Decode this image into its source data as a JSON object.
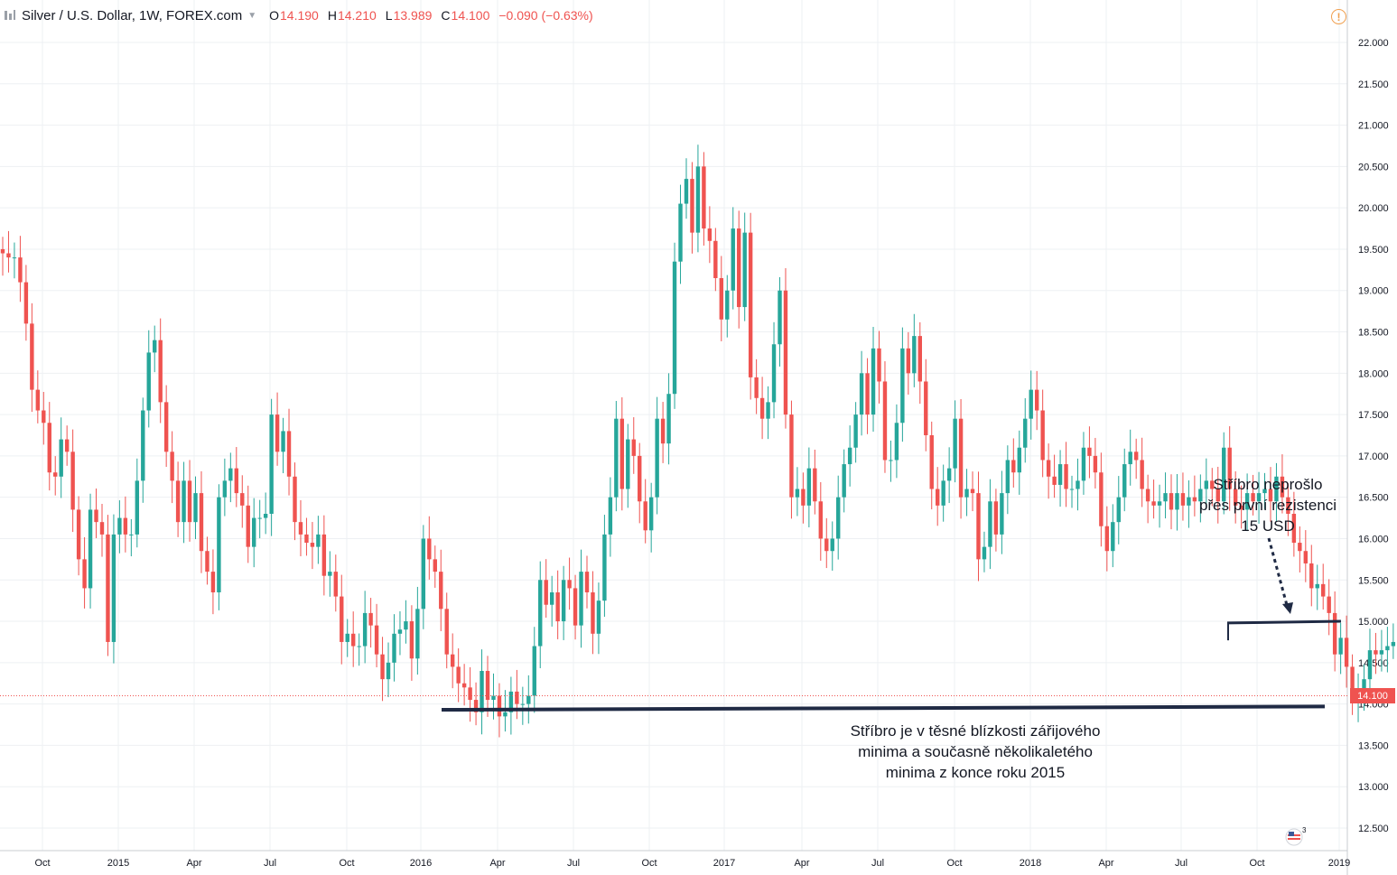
{
  "header": {
    "symbol": "Silver / U.S. Dollar, 1W, FOREX.com",
    "open_label": "O",
    "open_value": "14.190",
    "high_label": "H",
    "high_value": "14.210",
    "low_label": "L",
    "low_value": "13.989",
    "close_label": "C",
    "close_value": "14.100",
    "change": "−0.090 (−0.63%)"
  },
  "icons": {
    "symbol": "chart-bars-icon",
    "dropdown": "chevron-down-icon",
    "alert": "warning-icon",
    "flag": "us-flag-icon"
  },
  "warning_glyph": "!",
  "flag_badge": "3",
  "price_tag": "14.100",
  "annotations": {
    "resistance": [
      "Stříbro neprošlo",
      "přes první rezistenci",
      "15 USD"
    ],
    "support": [
      "Stříbro je v těsné blízkosti zářijového",
      "minima a současně několikaletého",
      "minima z konce roku 2015"
    ]
  },
  "colors": {
    "up": "#26a69a",
    "down": "#ef5350",
    "grid": "#eef0f3",
    "line": "#1f2a44",
    "axis_text": "#131722"
  },
  "chart_data": {
    "type": "candlestick",
    "title": "Silver / U.S. Dollar, 1W, FOREX.com",
    "x_ticks": [
      "Oct",
      "2015",
      "Apr",
      "Jul",
      "Oct",
      "2016",
      "Apr",
      "Jul",
      "Oct",
      "2017",
      "Apr",
      "Jul",
      "Oct",
      "2018",
      "Apr",
      "Jul",
      "Oct",
      "2019"
    ],
    "y_ticks": [
      "22.000",
      "21.500",
      "21.000",
      "20.500",
      "20.000",
      "19.500",
      "19.000",
      "18.500",
      "18.000",
      "17.500",
      "17.000",
      "16.500",
      "16.000",
      "15.500",
      "15.000",
      "14.500",
      "14.000",
      "13.500",
      "13.000",
      "12.500"
    ],
    "ylim": [
      12.3,
      22.25
    ],
    "grid": true,
    "start_week": "2014-08-15",
    "weekly_close": [
      19.45,
      19.4,
      19.4,
      19.1,
      18.6,
      17.8,
      17.55,
      17.4,
      16.8,
      16.75,
      17.2,
      17.05,
      16.35,
      15.75,
      15.4,
      16.35,
      16.2,
      16.05,
      14.75,
      16.05,
      16.25,
      16.05,
      16.05,
      16.7,
      17.55,
      18.25,
      18.4,
      17.65,
      17.05,
      16.7,
      16.2,
      16.7,
      16.2,
      16.55,
      15.85,
      15.6,
      15.35,
      16.5,
      16.7,
      16.85,
      16.55,
      16.4,
      15.9,
      16.25,
      16.25,
      16.3,
      17.5,
      17.05,
      17.3,
      16.75,
      16.2,
      16.05,
      15.95,
      15.9,
      16.05,
      15.55,
      15.6,
      15.3,
      14.75,
      14.85,
      14.7,
      14.7,
      15.1,
      14.95,
      14.6,
      14.3,
      14.5,
      14.85,
      14.9,
      15.0,
      14.55,
      15.15,
      16.0,
      15.75,
      15.6,
      15.15,
      14.6,
      14.45,
      14.25,
      14.2,
      14.05,
      13.9,
      14.4,
      14.05,
      14.1,
      13.85,
      13.9,
      14.15,
      14.0,
      14.0,
      14.1,
      14.7,
      15.5,
      15.2,
      15.35,
      15.0,
      15.5,
      15.4,
      14.95,
      15.6,
      15.35,
      14.85,
      15.25,
      16.05,
      16.5,
      17.45,
      16.6,
      17.2,
      17.0,
      16.45,
      16.1,
      16.5,
      17.45,
      17.15,
      17.75,
      19.35,
      20.05,
      20.35,
      19.7,
      20.5,
      19.75,
      19.6,
      19.15,
      18.65,
      19.0,
      19.75,
      18.8,
      19.7,
      17.95,
      17.7,
      17.45,
      17.65,
      18.35,
      19.0,
      17.5,
      16.5,
      16.6,
      16.4,
      16.85,
      16.45,
      16.0,
      15.85,
      16.0,
      16.5,
      16.9,
      17.1,
      17.5,
      18.0,
      17.5,
      18.3,
      17.9,
      16.95,
      16.95,
      17.4,
      18.3,
      18.0,
      18.45,
      17.9,
      17.25,
      16.6,
      16.4,
      16.7,
      16.85,
      17.45,
      16.5,
      16.6,
      16.55,
      15.75,
      15.9,
      16.45,
      16.05,
      16.55,
      16.95,
      16.8,
      17.1,
      17.45,
      17.8,
      17.55,
      16.95,
      16.75,
      16.65,
      16.9,
      16.6,
      16.6,
      16.7,
      17.1,
      17.0,
      16.8,
      16.15,
      15.85,
      16.2,
      16.5,
      16.9,
      17.05,
      16.95,
      16.6,
      16.45,
      16.4,
      16.45,
      16.55,
      16.35,
      16.55,
      16.4,
      16.5,
      16.45,
      16.6,
      16.7,
      16.6,
      16.45,
      17.1,
      16.6,
      16.4,
      16.35,
      16.55,
      16.45,
      16.55,
      16.6,
      16.45,
      16.75,
      16.5,
      16.3,
      15.95,
      15.85,
      15.7,
      15.4,
      15.45,
      15.3,
      15.1,
      14.6,
      14.8,
      14.45,
      14.05,
      14.1,
      14.3,
      14.65,
      14.6,
      14.65,
      14.7,
      14.75,
      14.2,
      14.1
    ]
  }
}
